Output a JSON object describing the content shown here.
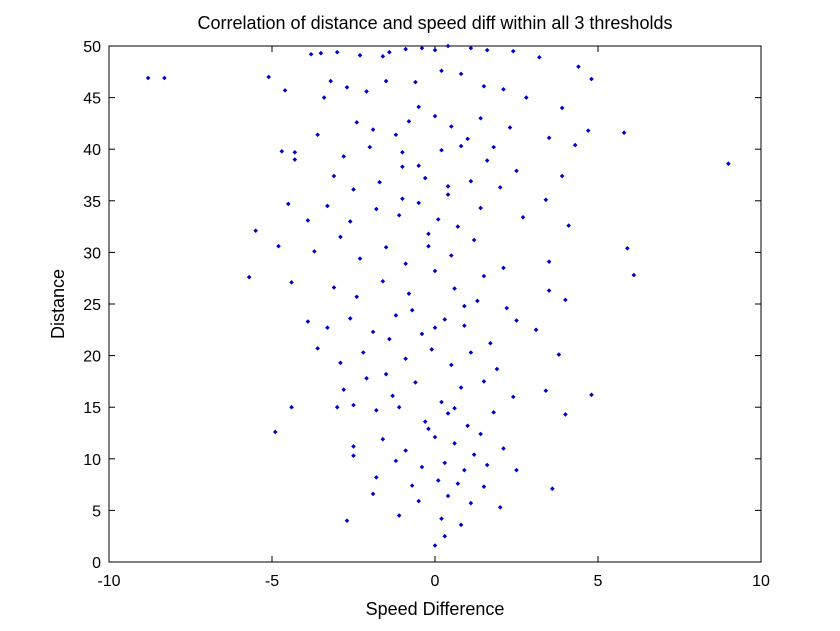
{
  "chart_data": {
    "type": "scatter",
    "title": "Correlation of distance and speed diff within all 3 thresholds",
    "xlabel": "Speed Difference",
    "ylabel": "Distance",
    "xlim": [
      -10,
      10
    ],
    "ylim": [
      0,
      50
    ],
    "xticks": [
      -10,
      -5,
      0,
      5,
      10
    ],
    "yticks": [
      0,
      5,
      10,
      15,
      20,
      25,
      30,
      35,
      40,
      45,
      50
    ],
    "grid": false,
    "marker_color": "#0000cc",
    "series": [
      {
        "points": [
          [
            -8.8,
            46.9
          ],
          [
            -8.3,
            46.9
          ],
          [
            -5.1,
            47.0
          ],
          [
            -4.6,
            45.7
          ],
          [
            -3.8,
            49.2
          ],
          [
            -3.5,
            49.3
          ],
          [
            -3.0,
            49.4
          ],
          [
            -2.3,
            49.1
          ],
          [
            -1.6,
            49.0
          ],
          [
            -1.4,
            49.4
          ],
          [
            -0.9,
            49.7
          ],
          [
            -0.4,
            49.8
          ],
          [
            0.0,
            49.6
          ],
          [
            0.4,
            50.0
          ],
          [
            1.1,
            49.8
          ],
          [
            1.6,
            49.6
          ],
          [
            2.4,
            49.5
          ],
          [
            3.2,
            48.9
          ],
          [
            4.4,
            48.0
          ],
          [
            4.8,
            46.8
          ],
          [
            -3.2,
            46.6
          ],
          [
            -2.7,
            46.0
          ],
          [
            -2.1,
            45.6
          ],
          [
            -1.5,
            46.6
          ],
          [
            -0.6,
            46.5
          ],
          [
            0.2,
            47.6
          ],
          [
            0.8,
            47.3
          ],
          [
            1.5,
            46.1
          ],
          [
            2.1,
            45.8
          ],
          [
            3.9,
            44.0
          ],
          [
            5.8,
            41.6
          ],
          [
            9.0,
            38.6
          ],
          [
            -3.4,
            45.0
          ],
          [
            -2.4,
            42.6
          ],
          [
            -1.9,
            41.9
          ],
          [
            -1.2,
            41.4
          ],
          [
            -0.8,
            42.7
          ],
          [
            0.0,
            43.2
          ],
          [
            0.5,
            42.2
          ],
          [
            1.0,
            41.0
          ],
          [
            1.4,
            43.0
          ],
          [
            2.3,
            42.1
          ],
          [
            3.5,
            41.1
          ],
          [
            4.7,
            41.8
          ],
          [
            -4.3,
            39.7
          ],
          [
            -3.6,
            41.4
          ],
          [
            -2.8,
            39.3
          ],
          [
            -2.0,
            40.2
          ],
          [
            -1.0,
            39.7
          ],
          [
            -0.5,
            38.4
          ],
          [
            0.2,
            39.9
          ],
          [
            0.8,
            40.3
          ],
          [
            1.6,
            38.9
          ],
          [
            2.5,
            37.9
          ],
          [
            3.9,
            37.4
          ],
          [
            -4.7,
            39.8
          ],
          [
            -4.3,
            39.0
          ],
          [
            -3.1,
            37.4
          ],
          [
            -2.5,
            36.1
          ],
          [
            -1.7,
            36.8
          ],
          [
            -1.0,
            35.2
          ],
          [
            -0.3,
            37.2
          ],
          [
            0.4,
            36.4
          ],
          [
            1.1,
            36.9
          ],
          [
            2.0,
            36.3
          ],
          [
            3.4,
            35.1
          ],
          [
            -4.5,
            34.7
          ],
          [
            -3.9,
            33.1
          ],
          [
            -3.3,
            34.5
          ],
          [
            -2.6,
            33.0
          ],
          [
            -1.8,
            34.2
          ],
          [
            -1.1,
            33.6
          ],
          [
            -0.5,
            34.8
          ],
          [
            0.1,
            33.2
          ],
          [
            0.7,
            32.5
          ],
          [
            1.4,
            34.3
          ],
          [
            2.7,
            33.4
          ],
          [
            4.1,
            32.6
          ],
          [
            -5.5,
            32.1
          ],
          [
            -4.8,
            30.6
          ],
          [
            -3.7,
            30.1
          ],
          [
            -2.9,
            31.5
          ],
          [
            -2.3,
            29.4
          ],
          [
            -1.5,
            30.5
          ],
          [
            -0.9,
            28.9
          ],
          [
            -0.2,
            30.6
          ],
          [
            0.5,
            29.7
          ],
          [
            1.2,
            31.2
          ],
          [
            2.1,
            28.5
          ],
          [
            3.5,
            29.1
          ],
          [
            5.9,
            30.4
          ],
          [
            6.1,
            27.8
          ],
          [
            -5.7,
            27.6
          ],
          [
            -4.4,
            27.1
          ],
          [
            -3.1,
            26.6
          ],
          [
            -2.4,
            25.7
          ],
          [
            -1.6,
            27.2
          ],
          [
            -0.8,
            26.0
          ],
          [
            0.0,
            28.2
          ],
          [
            0.6,
            26.5
          ],
          [
            1.3,
            25.3
          ],
          [
            2.2,
            24.6
          ],
          [
            3.5,
            26.3
          ],
          [
            4.0,
            25.4
          ],
          [
            -3.9,
            23.3
          ],
          [
            -3.3,
            22.7
          ],
          [
            -2.6,
            23.6
          ],
          [
            -1.9,
            22.3
          ],
          [
            -1.2,
            23.9
          ],
          [
            -0.4,
            22.1
          ],
          [
            0.3,
            23.5
          ],
          [
            0.9,
            22.9
          ],
          [
            1.7,
            21.2
          ],
          [
            2.5,
            23.4
          ],
          [
            3.1,
            22.5
          ],
          [
            -3.6,
            20.7
          ],
          [
            -2.9,
            19.3
          ],
          [
            -2.2,
            20.3
          ],
          [
            -1.5,
            18.2
          ],
          [
            -0.9,
            19.7
          ],
          [
            -0.1,
            20.6
          ],
          [
            0.5,
            19.1
          ],
          [
            1.1,
            20.3
          ],
          [
            1.9,
            18.7
          ],
          [
            3.8,
            20.1
          ],
          [
            -2.8,
            16.7
          ],
          [
            -2.1,
            17.8
          ],
          [
            -1.3,
            16.1
          ],
          [
            -0.6,
            17.4
          ],
          [
            0.2,
            15.5
          ],
          [
            0.8,
            16.9
          ],
          [
            1.5,
            17.5
          ],
          [
            2.4,
            16.0
          ],
          [
            3.4,
            16.6
          ],
          [
            4.0,
            14.3
          ],
          [
            4.8,
            16.2
          ],
          [
            -4.4,
            15.0
          ],
          [
            -3.0,
            15.0
          ],
          [
            -2.5,
            15.2
          ],
          [
            -1.8,
            14.7
          ],
          [
            -1.1,
            15.0
          ],
          [
            -0.3,
            13.6
          ],
          [
            0.4,
            14.4
          ],
          [
            1.0,
            13.2
          ],
          [
            1.8,
            14.5
          ],
          [
            -4.9,
            12.6
          ],
          [
            -2.5,
            11.2
          ],
          [
            -1.6,
            11.9
          ],
          [
            -0.9,
            10.8
          ],
          [
            0.0,
            12.1
          ],
          [
            0.6,
            11.5
          ],
          [
            1.2,
            10.4
          ],
          [
            2.1,
            11.0
          ],
          [
            -2.5,
            10.3
          ],
          [
            -1.2,
            9.8
          ],
          [
            -0.4,
            9.2
          ],
          [
            0.3,
            9.6
          ],
          [
            0.9,
            8.9
          ],
          [
            1.6,
            9.4
          ],
          [
            2.5,
            8.9
          ],
          [
            -1.8,
            8.2
          ],
          [
            -0.7,
            7.4
          ],
          [
            0.1,
            7.9
          ],
          [
            0.7,
            7.6
          ],
          [
            1.5,
            7.3
          ],
          [
            3.6,
            7.1
          ],
          [
            -1.9,
            6.6
          ],
          [
            -0.5,
            5.9
          ],
          [
            0.4,
            6.4
          ],
          [
            1.1,
            5.7
          ],
          [
            2.0,
            5.3
          ],
          [
            -2.7,
            4.0
          ],
          [
            -1.1,
            4.5
          ],
          [
            0.2,
            4.2
          ],
          [
            0.8,
            3.6
          ],
          [
            0.0,
            1.6
          ],
          [
            0.3,
            2.5
          ],
          [
            -0.2,
            12.9
          ],
          [
            0.6,
            14.9
          ],
          [
            1.4,
            12.4
          ],
          [
            -1.4,
            21.6
          ],
          [
            -0.7,
            24.4
          ],
          [
            0.9,
            24.8
          ],
          [
            1.5,
            27.7
          ],
          [
            -0.2,
            31.8
          ],
          [
            0.4,
            35.6
          ],
          [
            1.8,
            40.2
          ],
          [
            -0.5,
            44.1
          ],
          [
            2.8,
            45.0
          ],
          [
            4.3,
            40.4
          ],
          [
            -1.0,
            38.3
          ],
          [
            0.0,
            22.7
          ]
        ]
      }
    ]
  }
}
